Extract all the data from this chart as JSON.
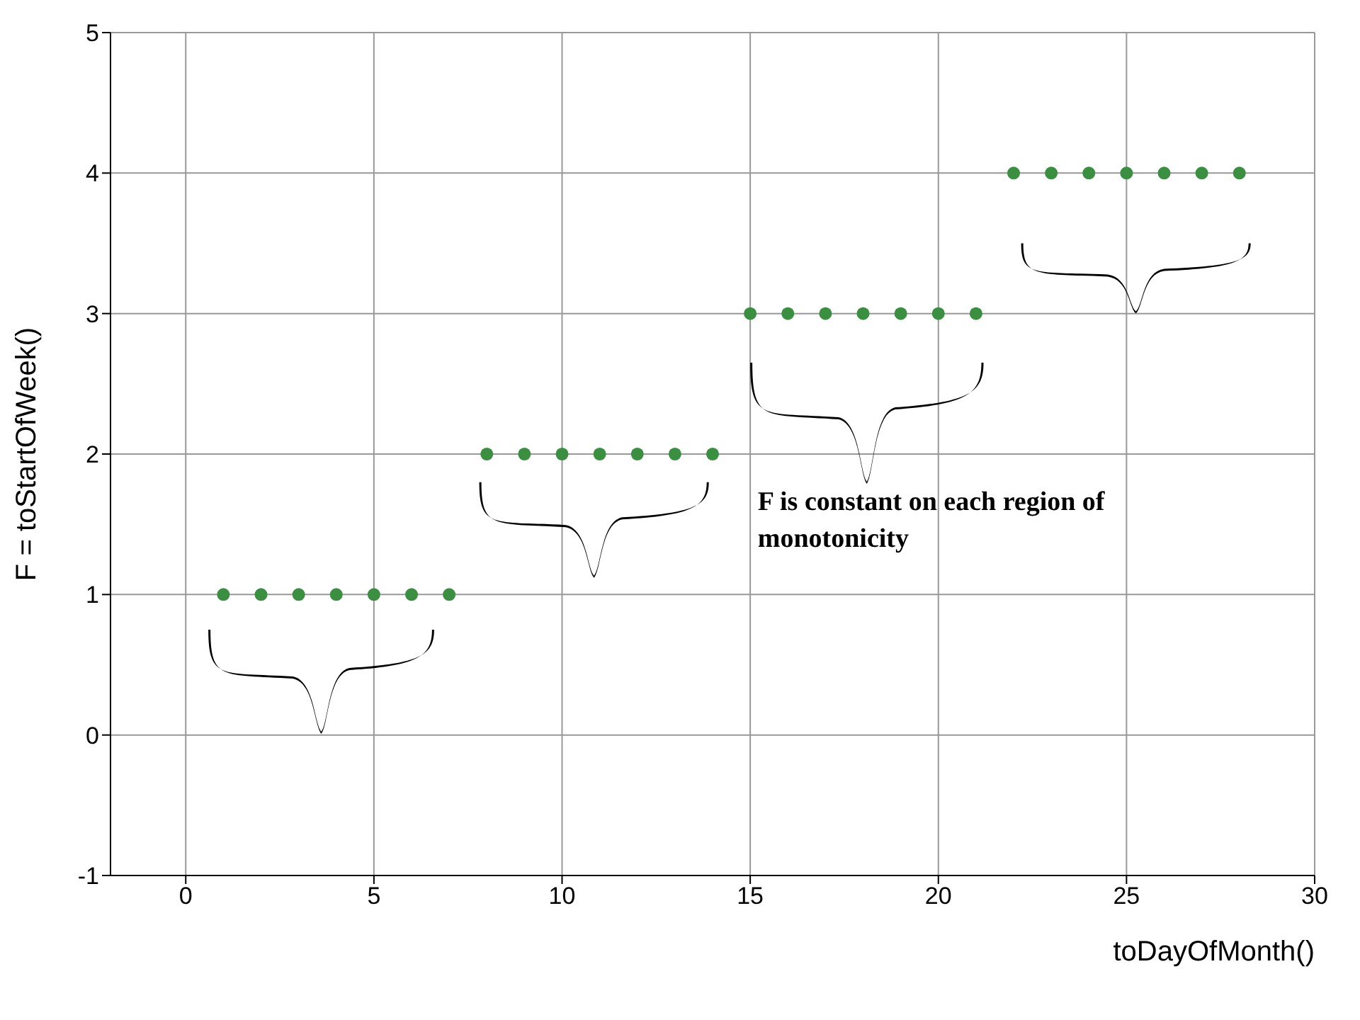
{
  "chart_data": {
    "type": "scatter",
    "xlabel": "toDayOfMonth()",
    "ylabel": "F = toStartOfWeek()",
    "x": [
      1,
      2,
      3,
      4,
      5,
      6,
      7,
      8,
      9,
      10,
      11,
      12,
      13,
      14,
      15,
      16,
      17,
      18,
      19,
      20,
      21,
      22,
      23,
      24,
      25,
      26,
      27,
      28
    ],
    "series": [
      {
        "color": "#3a8f41",
        "values": [
          1,
          1,
          1,
          1,
          1,
          1,
          1,
          2,
          2,
          2,
          2,
          2,
          2,
          2,
          3,
          3,
          3,
          3,
          3,
          3,
          3,
          4,
          4,
          4,
          4,
          4,
          4,
          4
        ]
      }
    ],
    "xlim": [
      -2,
      30
    ],
    "xticks": [
      0,
      5,
      10,
      15,
      20,
      25,
      30
    ],
    "ylim": [
      -1,
      5
    ],
    "yticks": [
      -1,
      0,
      1,
      2,
      3,
      4,
      5
    ],
    "grid": true,
    "marker": "circle",
    "annotations": [
      "F is constant on each region of monotonicity"
    ]
  }
}
